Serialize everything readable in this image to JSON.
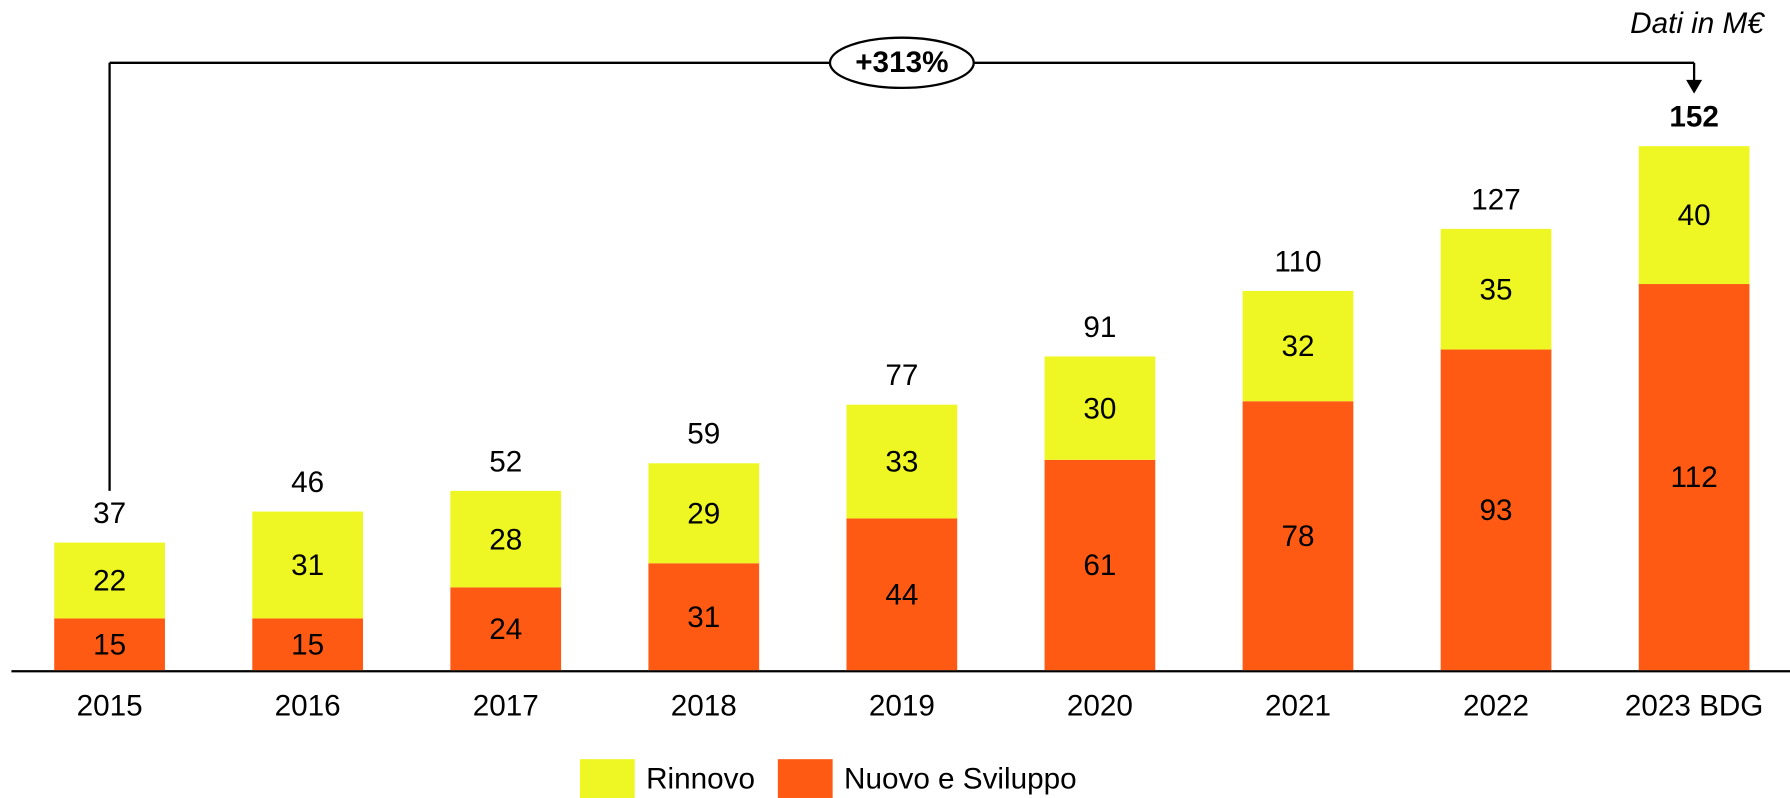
{
  "chart_data": {
    "type": "stacked-bar",
    "note": "Dati in M€",
    "annotation": "+313%",
    "categories": [
      "2015",
      "2016",
      "2017",
      "2018",
      "2019",
      "2020",
      "2021",
      "2022",
      "2023 BDG"
    ],
    "series": [
      {
        "name": "Nuovo e Sviluppo",
        "color": "#ff5a14",
        "values": [
          15,
          15,
          24,
          31,
          44,
          61,
          78,
          93,
          112
        ]
      },
      {
        "name": "Rinnovo",
        "color": "#eef723",
        "values": [
          22,
          31,
          28,
          29,
          33,
          30,
          32,
          35,
          40
        ]
      }
    ],
    "totals": [
      37,
      46,
      52,
      59,
      77,
      91,
      110,
      127,
      152
    ]
  }
}
